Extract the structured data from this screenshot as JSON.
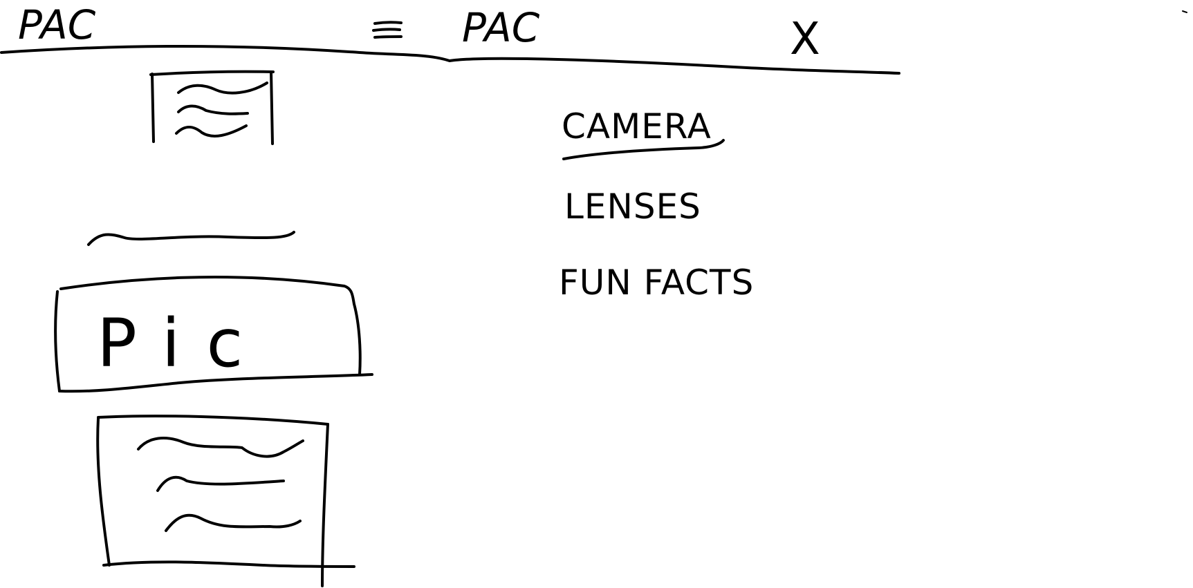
{
  "left_screen": {
    "header": {
      "logo": "PAC"
    },
    "image_placeholder": {
      "label": "Pic"
    }
  },
  "right_screen": {
    "header": {
      "menu_icon": "hamburger-menu-icon",
      "logo": "PAC",
      "close_label": "X"
    },
    "menu": {
      "items": [
        {
          "label": "CAMERA",
          "active": true
        },
        {
          "label": "LENSES",
          "active": false
        },
        {
          "label": "FUN FACTS",
          "active": false
        }
      ]
    }
  }
}
